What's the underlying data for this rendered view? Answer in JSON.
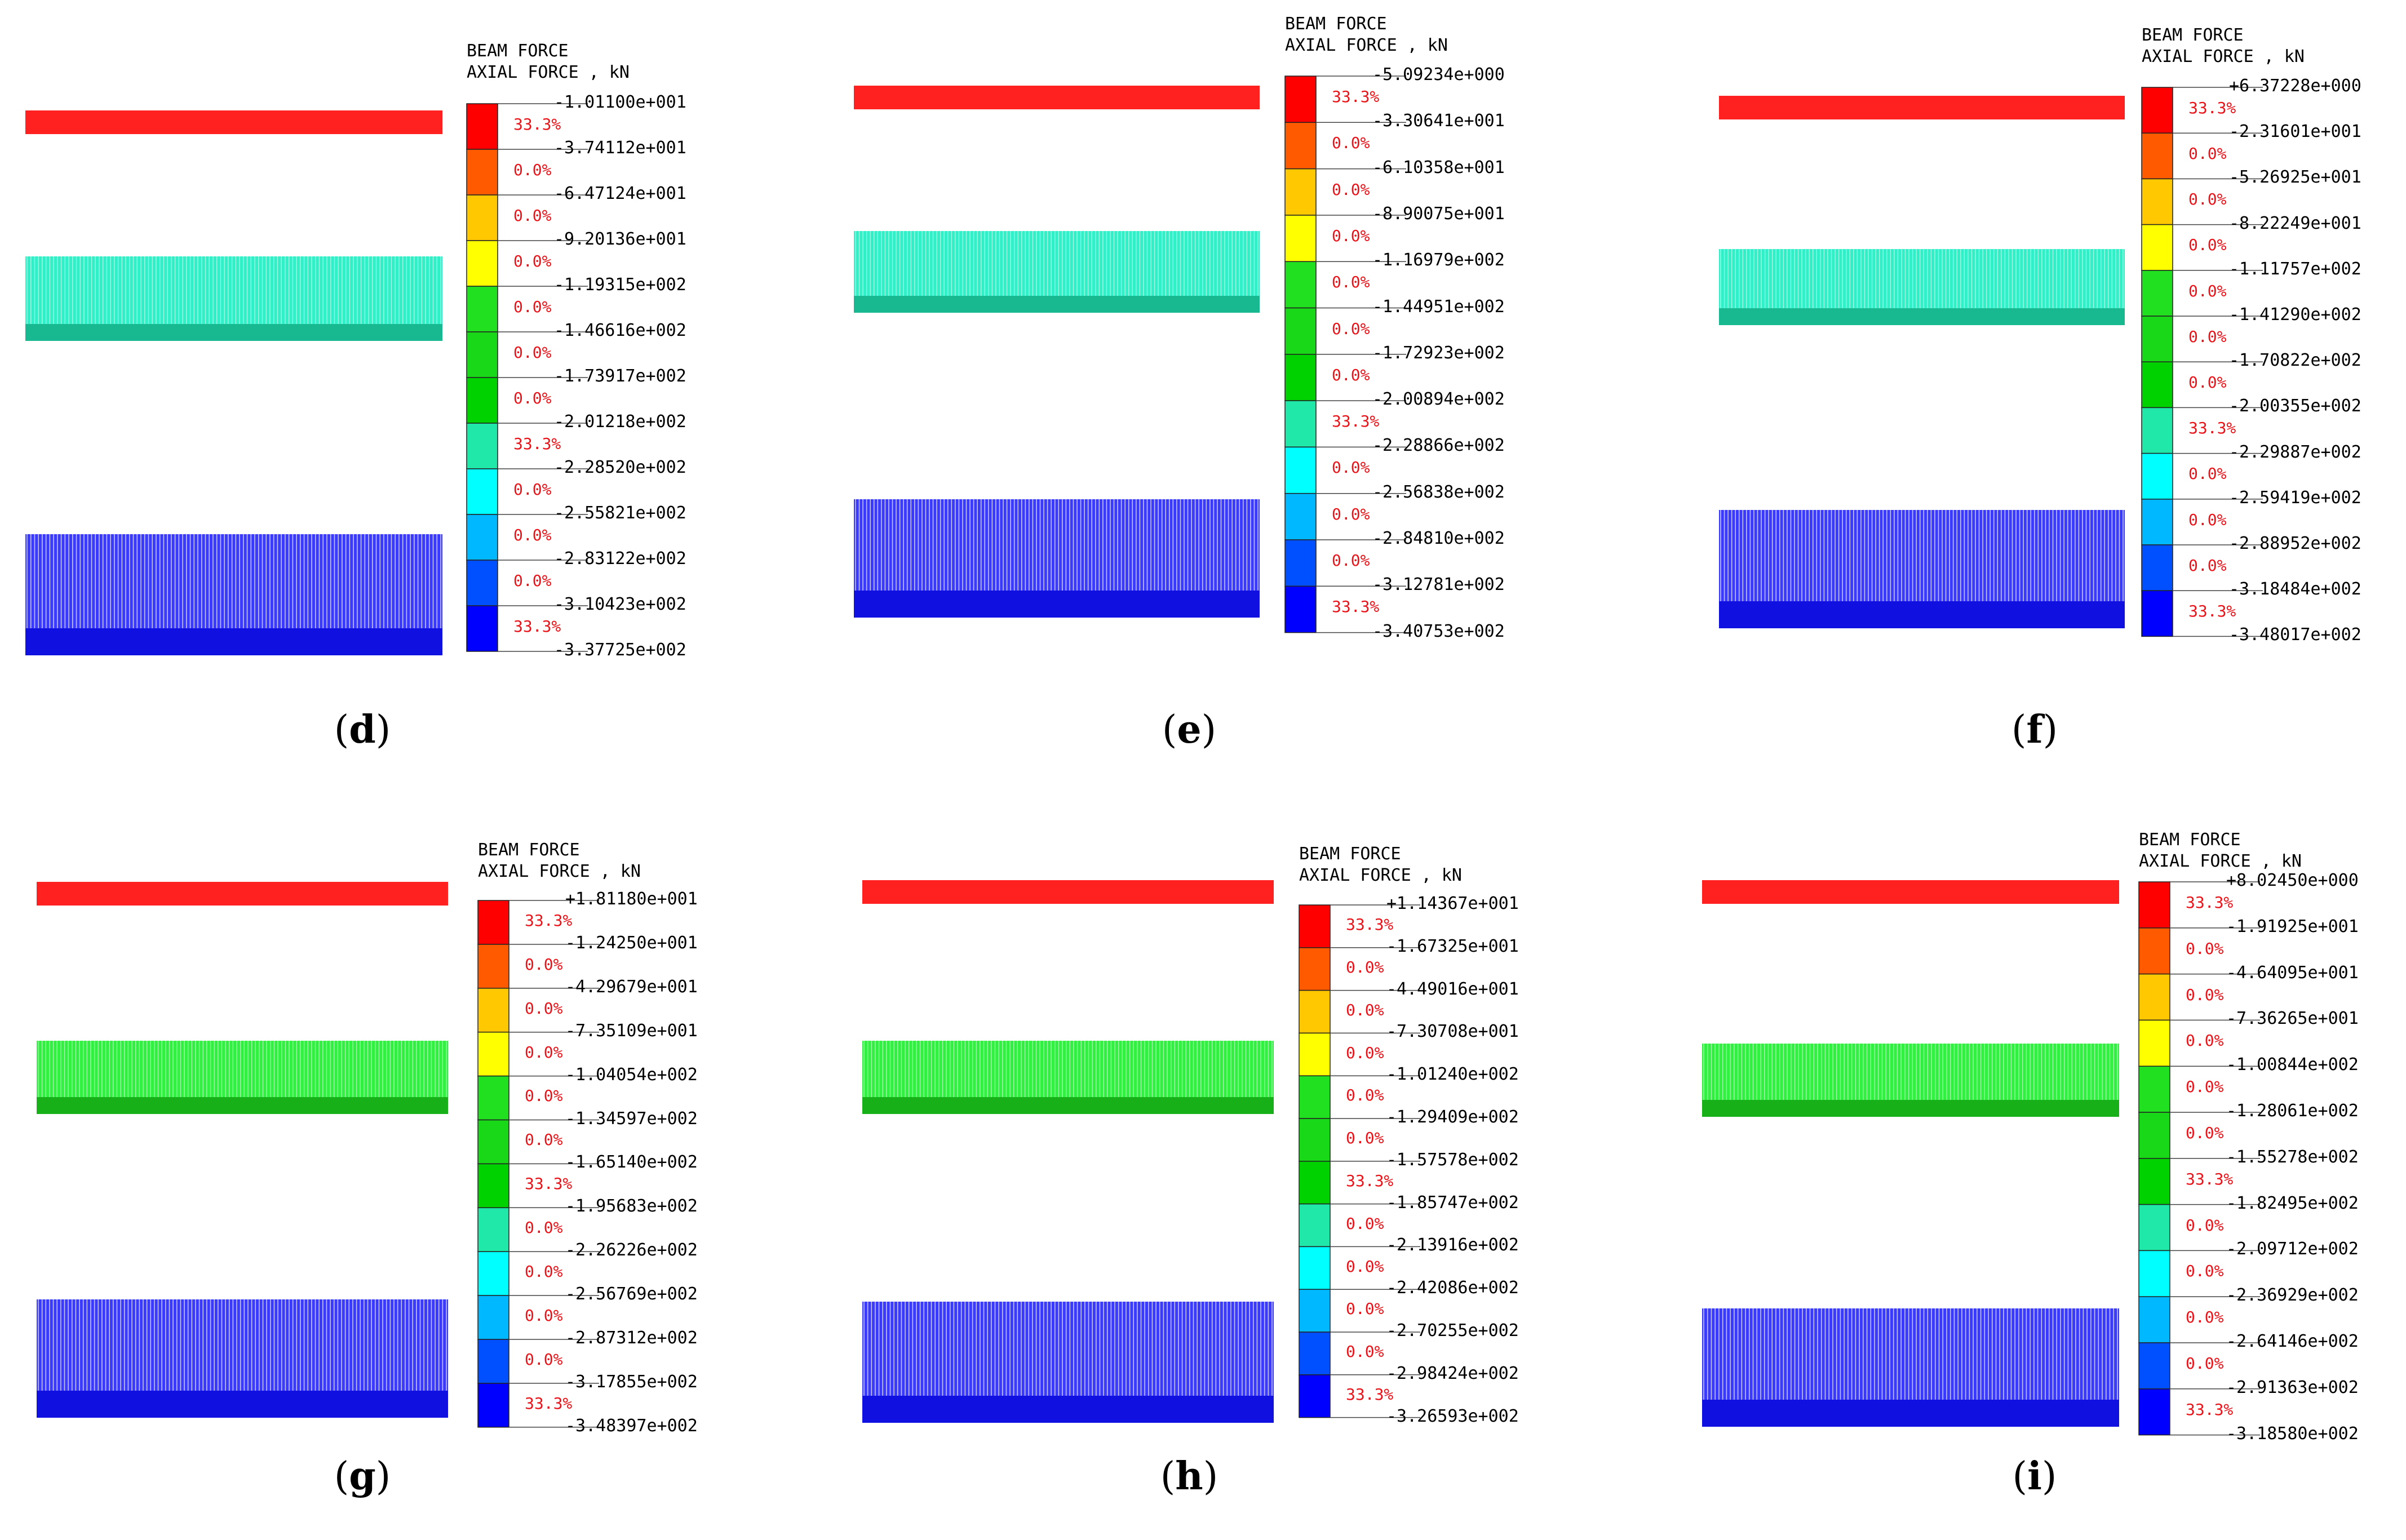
{
  "colors": {
    "scale": [
      "#ff0000",
      "#ff5a00",
      "#ffc800",
      "#ffff00",
      "#20e020",
      "#18d818",
      "#00d200",
      "#20e8a8",
      "#00ffff",
      "#00b8ff",
      "#0050ff",
      "#0000ff"
    ],
    "top_beam": "#ff2020",
    "middle_beam_teal": "#30f0c8",
    "middle_beam_green": "#30f040",
    "bottom_beam": "#2020ff",
    "percent_text": "#e8141a"
  },
  "panels": [
    {
      "id": "d",
      "caption_open": "(",
      "caption_letter": "d",
      "caption_close": ")",
      "legend_line1": "BEAM FORCE",
      "legend_line2": "AXIAL FORCE , kN",
      "middle_style": "teal",
      "values": [
        "-1.01100e+001",
        "-3.74112e+001",
        "-6.47124e+001",
        "-9.20136e+001",
        "-1.19315e+002",
        "-1.46616e+002",
        "-1.73917e+002",
        "-2.01218e+002",
        "-2.28520e+002",
        "-2.55821e+002",
        "-2.83122e+002",
        "-3.10423e+002",
        "-3.37725e+002"
      ],
      "percents": [
        "33.3%",
        "0.0%",
        "0.0%",
        "0.0%",
        "0.0%",
        "0.0%",
        "0.0%",
        "33.3%",
        "0.0%",
        "0.0%",
        "0.0%",
        "33.3%"
      ]
    },
    {
      "id": "e",
      "caption_open": "(",
      "caption_letter": "e",
      "caption_close": ")",
      "legend_line1": "BEAM FORCE",
      "legend_line2": "AXIAL FORCE , kN",
      "middle_style": "teal",
      "values": [
        "-5.09234e+000",
        "-3.30641e+001",
        "-6.10358e+001",
        "-8.90075e+001",
        "-1.16979e+002",
        "-1.44951e+002",
        "-1.72923e+002",
        "-2.00894e+002",
        "-2.28866e+002",
        "-2.56838e+002",
        "-2.84810e+002",
        "-3.12781e+002",
        "-3.40753e+002"
      ],
      "percents": [
        "33.3%",
        "0.0%",
        "0.0%",
        "0.0%",
        "0.0%",
        "0.0%",
        "0.0%",
        "33.3%",
        "0.0%",
        "0.0%",
        "0.0%",
        "33.3%"
      ]
    },
    {
      "id": "f",
      "caption_open": "(",
      "caption_letter": "f",
      "caption_close": ")",
      "legend_line1": "BEAM FORCE",
      "legend_line2": "AXIAL FORCE , kN",
      "middle_style": "teal",
      "values": [
        "+6.37228e+000",
        "-2.31601e+001",
        "-5.26925e+001",
        "-8.22249e+001",
        "-1.11757e+002",
        "-1.41290e+002",
        "-1.70822e+002",
        "-2.00355e+002",
        "-2.29887e+002",
        "-2.59419e+002",
        "-2.88952e+002",
        "-3.18484e+002",
        "-3.48017e+002"
      ],
      "percents": [
        "33.3%",
        "0.0%",
        "0.0%",
        "0.0%",
        "0.0%",
        "0.0%",
        "0.0%",
        "33.3%",
        "0.0%",
        "0.0%",
        "0.0%",
        "33.3%"
      ]
    },
    {
      "id": "g",
      "caption_open": "(",
      "caption_letter": "g",
      "caption_close": ")",
      "legend_line1": "BEAM FORCE",
      "legend_line2": "AXIAL FORCE , kN",
      "middle_style": "green",
      "values": [
        "+1.81180e+001",
        "-1.24250e+001",
        "-4.29679e+001",
        "-7.35109e+001",
        "-1.04054e+002",
        "-1.34597e+002",
        "-1.65140e+002",
        "-1.95683e+002",
        "-2.26226e+002",
        "-2.56769e+002",
        "-2.87312e+002",
        "-3.17855e+002",
        "-3.48397e+002"
      ],
      "percents": [
        "33.3%",
        "0.0%",
        "0.0%",
        "0.0%",
        "0.0%",
        "0.0%",
        "33.3%",
        "0.0%",
        "0.0%",
        "0.0%",
        "0.0%",
        "33.3%"
      ]
    },
    {
      "id": "h",
      "caption_open": "(",
      "caption_letter": "h",
      "caption_close": ")",
      "legend_line1": "BEAM FORCE",
      "legend_line2": "AXIAL FORCE , kN",
      "middle_style": "green",
      "values": [
        "+1.14367e+001",
        "-1.67325e+001",
        "-4.49016e+001",
        "-7.30708e+001",
        "-1.01240e+002",
        "-1.29409e+002",
        "-1.57578e+002",
        "-1.85747e+002",
        "-2.13916e+002",
        "-2.42086e+002",
        "-2.70255e+002",
        "-2.98424e+002",
        "-3.26593e+002"
      ],
      "percents": [
        "33.3%",
        "0.0%",
        "0.0%",
        "0.0%",
        "0.0%",
        "0.0%",
        "33.3%",
        "0.0%",
        "0.0%",
        "0.0%",
        "0.0%",
        "33.3%"
      ]
    },
    {
      "id": "i",
      "caption_open": "(",
      "caption_letter": "i",
      "caption_close": ")",
      "legend_line1": "BEAM FORCE",
      "legend_line2": "AXIAL FORCE , kN",
      "middle_style": "green",
      "values": [
        "+8.02450e+000",
        "-1.91925e+001",
        "-4.64095e+001",
        "-7.36265e+001",
        "-1.00844e+002",
        "-1.28061e+002",
        "-1.55278e+002",
        "-1.82495e+002",
        "-2.09712e+002",
        "-2.36929e+002",
        "-2.64146e+002",
        "-2.91363e+002",
        "-3.18580e+002"
      ],
      "percents": [
        "33.3%",
        "0.0%",
        "0.0%",
        "0.0%",
        "0.0%",
        "0.0%",
        "33.3%",
        "0.0%",
        "0.0%",
        "0.0%",
        "0.0%",
        "33.3%"
      ]
    }
  ]
}
